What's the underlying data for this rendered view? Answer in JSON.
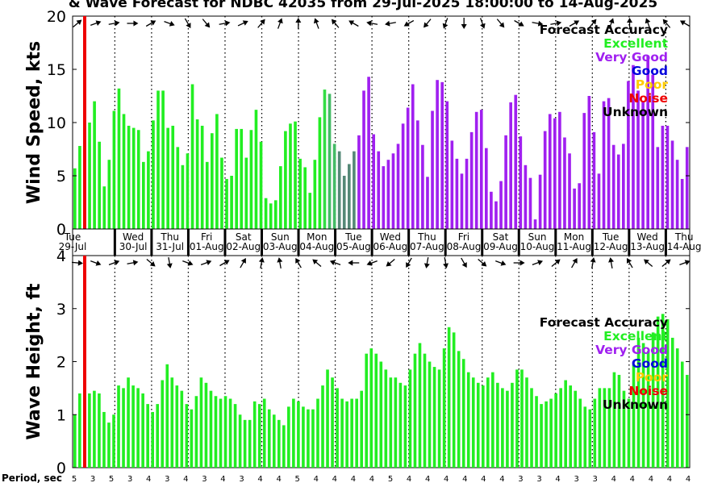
{
  "title": "& Wave Forecast for NDBC 42035 from 29-Jul-2025 18:00:00 to 14-Aug-2025",
  "period_label": "Period, sec",
  "days": [
    {
      "dow": "Tue",
      "date": "29-Jul"
    },
    {
      "dow": "Wed",
      "date": "30-Jul"
    },
    {
      "dow": "Thu",
      "date": "31-Jul"
    },
    {
      "dow": "Fri",
      "date": "01-Aug"
    },
    {
      "dow": "Sat",
      "date": "02-Aug"
    },
    {
      "dow": "Sun",
      "date": "03-Aug"
    },
    {
      "dow": "Mon",
      "date": "04-Aug"
    },
    {
      "dow": "Tue",
      "date": "05-Aug"
    },
    {
      "dow": "Wed",
      "date": "06-Aug"
    },
    {
      "dow": "Thu",
      "date": "07-Aug"
    },
    {
      "dow": "Fri",
      "date": "08-Aug"
    },
    {
      "dow": "Sat",
      "date": "09-Aug"
    },
    {
      "dow": "Sun",
      "date": "10-Aug"
    },
    {
      "dow": "Mon",
      "date": "11-Aug"
    },
    {
      "dow": "Tue",
      "date": "12-Aug"
    },
    {
      "dow": "Wed",
      "date": "13-Aug"
    },
    {
      "dow": "Thu",
      "date": "14-Aug"
    }
  ],
  "legend": {
    "title": "Forecast Accuracy",
    "items": [
      {
        "label": "Excellent",
        "color": "#22ee22"
      },
      {
        "label": "Very Good",
        "color": "#a020f0"
      },
      {
        "label": "Good",
        "color": "#0000dd"
      },
      {
        "label": "Poor",
        "color": "#ffcc00"
      },
      {
        "label": "Noise",
        "color": "#ee0000"
      },
      {
        "label": "Unknown",
        "color": "#000000"
      }
    ]
  },
  "chart_data": [
    {
      "type": "bar",
      "ylabel": "Wind Speed, kts",
      "ylim": [
        0,
        20
      ],
      "yticks": [
        "0",
        "5",
        "10",
        "15",
        "20"
      ],
      "values": [
        5.7,
        7.8,
        7.8,
        10.0,
        12.0,
        8.2,
        4.0,
        6.5,
        11.1,
        13.2,
        10.8,
        9.7,
        9.5,
        9.3,
        6.3,
        7.3,
        10.2,
        13.0,
        13.0,
        9.5,
        9.7,
        7.7,
        6.0,
        7.1,
        13.6,
        10.3,
        9.7,
        6.3,
        9.0,
        10.8,
        6.7,
        4.7,
        5.0,
        9.4,
        9.4,
        6.7,
        9.3,
        11.2,
        8.2,
        2.9,
        2.4,
        2.7,
        5.9,
        9.2,
        9.9,
        10.1,
        6.6,
        5.8,
        3.4,
        6.5,
        10.5,
        13.1,
        12.7,
        8.0,
        7.3,
        5.0,
        6.1,
        7.3,
        8.8,
        13.0,
        14.3,
        8.9,
        7.3,
        5.9,
        6.5,
        7.1,
        8.0,
        9.9,
        11.4,
        13.6,
        10.2,
        7.9,
        4.9,
        11.1,
        14.0,
        13.8,
        12.0,
        8.3,
        6.6,
        5.2,
        6.6,
        9.1,
        11.0,
        11.2,
        7.6,
        3.5,
        2.6,
        4.5,
        8.8,
        11.9,
        12.6,
        8.7,
        6.0,
        4.8,
        0.9,
        5.1,
        9.2,
        10.8,
        10.4,
        11.0,
        8.6,
        7.1,
        3.8,
        4.3,
        10.9,
        12.5,
        9.1,
        5.2,
        12.0,
        12.3,
        7.9,
        7.0,
        8.0,
        13.9,
        15.4,
        13.0,
        12.0,
        16.3,
        14.5,
        7.7,
        9.7,
        9.7,
        8.3,
        6.5,
        4.7,
        7.7
      ],
      "colors_run": [
        {
          "count": 51,
          "color": "#22ee22"
        },
        {
          "count": 1,
          "color": "#33dd44"
        },
        {
          "count": 2,
          "color": "#44bb66"
        },
        {
          "count": 4,
          "color": "#558877"
        },
        {
          "count": 68,
          "color": "#a020f0"
        }
      ],
      "wind_arrow_angles_deg": [
        0,
        10,
        20,
        45,
        30,
        60,
        40,
        20,
        10,
        30,
        60,
        80,
        100,
        120,
        90,
        60,
        30,
        20,
        15,
        10,
        350,
        340,
        330,
        320,
        310,
        300,
        290,
        280,
        270,
        260,
        250,
        240,
        230,
        220,
        210,
        200,
        190,
        180,
        170,
        160,
        150,
        140,
        130,
        120,
        110,
        100,
        90,
        80,
        70,
        60,
        50,
        40,
        30,
        20,
        10,
        0,
        350,
        340,
        330,
        320,
        310,
        300,
        290,
        280,
        270,
        260,
        250
      ]
    },
    {
      "type": "bar",
      "ylabel": "Wave Height, ft",
      "ylim": [
        0,
        4
      ],
      "yticks": [
        "0",
        "1",
        "2",
        "3",
        "4"
      ],
      "values": [
        1.0,
        1.4,
        1.0,
        1.4,
        1.45,
        1.4,
        1.05,
        0.85,
        1.0,
        1.55,
        1.5,
        1.7,
        1.55,
        1.5,
        1.4,
        1.2,
        1.05,
        1.2,
        1.65,
        1.95,
        1.7,
        1.55,
        1.45,
        1.2,
        1.1,
        1.35,
        1.7,
        1.6,
        1.45,
        1.35,
        1.3,
        1.35,
        1.3,
        1.2,
        1.0,
        0.9,
        0.9,
        1.25,
        1.2,
        1.3,
        1.1,
        1.0,
        0.9,
        0.8,
        1.15,
        1.3,
        1.25,
        1.15,
        1.1,
        1.1,
        1.3,
        1.55,
        1.85,
        1.7,
        1.5,
        1.3,
        1.25,
        1.3,
        1.3,
        1.45,
        2.15,
        2.25,
        2.15,
        2.0,
        1.85,
        1.7,
        1.7,
        1.6,
        1.55,
        1.85,
        2.15,
        2.35,
        2.15,
        2.0,
        1.9,
        1.85,
        2.25,
        2.65,
        2.55,
        2.2,
        2.05,
        1.8,
        1.7,
        1.6,
        1.55,
        1.7,
        1.8,
        1.6,
        1.5,
        1.45,
        1.6,
        1.85,
        1.85,
        1.7,
        1.5,
        1.35,
        1.2,
        1.25,
        1.3,
        1.4,
        1.5,
        1.65,
        1.55,
        1.45,
        1.3,
        1.15,
        1.1,
        1.3,
        1.5,
        1.5,
        1.5,
        1.8,
        1.75,
        1.45,
        1.3,
        1.95,
        2.45,
        2.35,
        2.2,
        2.55,
        2.85,
        2.9,
        2.8,
        2.45,
        2.25,
        2.0,
        1.75
      ],
      "colors_run": [
        {
          "count": 127,
          "color": "#22ee22"
        }
      ]
    }
  ],
  "periods": [
    "5",
    "3",
    "5",
    "3",
    "4",
    "3",
    "4",
    "3",
    "4",
    "3",
    "4",
    "4",
    "5",
    "4",
    "4",
    "4",
    "4",
    "5",
    "4",
    "4",
    "4",
    "4",
    "4",
    "4",
    "3",
    "3",
    "4",
    "3",
    "3",
    "4",
    "4",
    "4",
    "4",
    "4",
    "4",
    "3",
    "3",
    "3",
    "4",
    "4",
    "4",
    "4",
    "4",
    "4",
    "3",
    "3",
    "4",
    "4",
    "4",
    "4",
    "4",
    "4",
    "4",
    "4",
    "4",
    "4",
    "4",
    "4",
    "4",
    "4",
    "4",
    "4",
    "4",
    "4",
    "4",
    "4",
    "4",
    "4",
    "4",
    "4",
    "4",
    "4"
  ],
  "noise_marker_color": "#ee0000"
}
